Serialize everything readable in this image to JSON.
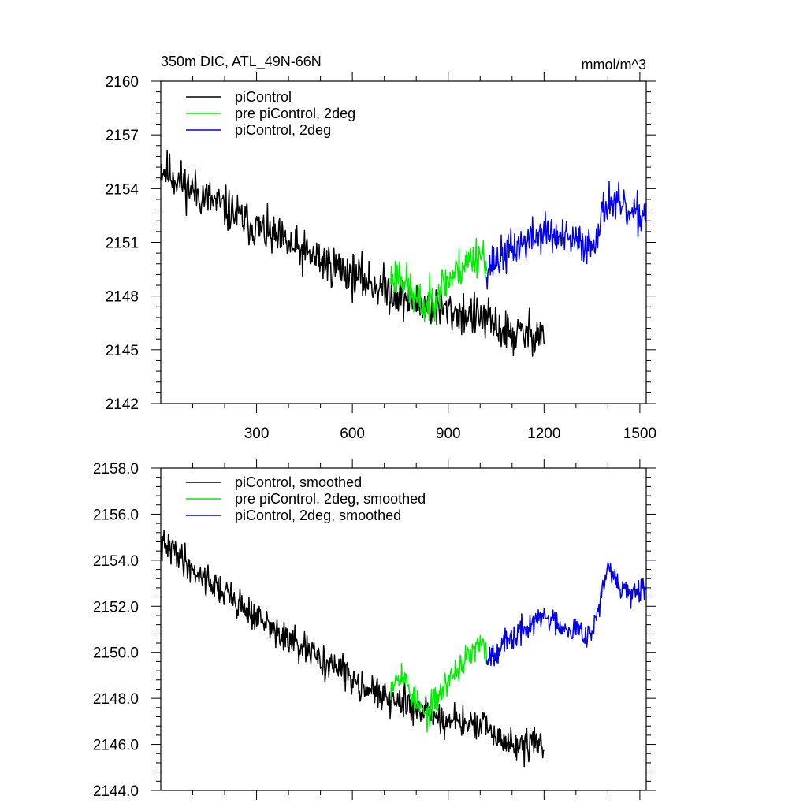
{
  "chart_data": [
    {
      "type": "line",
      "title": "350m DIC, ATL_49N-66N",
      "units_label": "mmol/m^3",
      "xlabel": "",
      "ylabel": "",
      "xlim": [
        0,
        1520
      ],
      "ylim": [
        2142,
        2160
      ],
      "x_ticks": [
        300,
        600,
        900,
        1200,
        1500
      ],
      "x_tick_labels": [
        "300",
        "600",
        "900",
        "1200",
        "1500"
      ],
      "y_ticks": [
        2142,
        2145,
        2148,
        2151,
        2154,
        2157,
        2160
      ],
      "y_tick_labels": [
        "2142",
        "2145",
        "2148",
        "2151",
        "2154",
        "2157",
        "2160"
      ],
      "legend": [
        "piControl",
        "pre piControl, 2deg",
        "piControl, 2deg"
      ],
      "legend_position": "top-left",
      "series": [
        {
          "name": "piControl",
          "color": "#000000",
          "x_range": [
            0,
            1200
          ],
          "step": 2,
          "seed": 11,
          "noise": 1.05,
          "anchors": [
            [
              0,
              2155.2
            ],
            [
              100,
              2153.9
            ],
            [
              200,
              2152.9
            ],
            [
              300,
              2151.8
            ],
            [
              400,
              2150.8
            ],
            [
              500,
              2150.0
            ],
            [
              600,
              2149.2
            ],
            [
              700,
              2148.4
            ],
            [
              800,
              2147.6
            ],
            [
              900,
              2147.2
            ],
            [
              1000,
              2146.8
            ],
            [
              1100,
              2145.8
            ],
            [
              1200,
              2146.0
            ]
          ]
        },
        {
          "name": "pre piControl, 2deg",
          "color": "#00ee00",
          "x_range": [
            720,
            1020
          ],
          "step": 2,
          "seed": 23,
          "noise": 1.0,
          "anchors": [
            [
              720,
              2149.0
            ],
            [
              750,
              2149.3
            ],
            [
              800,
              2147.7
            ],
            [
              830,
              2147.4
            ],
            [
              870,
              2148.4
            ],
            [
              900,
              2148.9
            ],
            [
              950,
              2149.8
            ],
            [
              1000,
              2150.4
            ],
            [
              1020,
              2150.2
            ]
          ]
        },
        {
          "name": "piControl, 2deg",
          "color": "#0000ee",
          "x_range": [
            1020,
            1520
          ],
          "step": 2,
          "seed": 37,
          "noise": 0.95,
          "anchors": [
            [
              1020,
              2149.6
            ],
            [
              1100,
              2150.6
            ],
            [
              1200,
              2151.6
            ],
            [
              1250,
              2151.2
            ],
            [
              1300,
              2151.0
            ],
            [
              1350,
              2150.8
            ],
            [
              1400,
              2153.4
            ],
            [
              1430,
              2153.0
            ],
            [
              1480,
              2152.4
            ],
            [
              1520,
              2152.7
            ]
          ]
        }
      ]
    },
    {
      "type": "line",
      "title": "",
      "xlabel": "",
      "ylabel": "",
      "xlim": [
        0,
        1520
      ],
      "ylim": [
        2144,
        2158
      ],
      "x_ticks": [
        300,
        600,
        900,
        1200,
        1500
      ],
      "y_ticks": [
        2144,
        2146,
        2148,
        2150,
        2152,
        2154,
        2156,
        2158
      ],
      "y_tick_labels": [
        "2144.0",
        "2146.0",
        "2148.0",
        "2150.0",
        "2152.0",
        "2154.0",
        "2156.0",
        "2158.0"
      ],
      "legend": [
        "piControl, smoothed",
        "pre piControl, 2deg, smoothed",
        "piControl, 2deg, smoothed"
      ],
      "legend_position": "top-left",
      "series": [
        {
          "name": "piControl, smoothed",
          "color": "#000000",
          "x_range": [
            0,
            1200
          ],
          "step": 2,
          "seed": 41,
          "noise": 0.6,
          "anchors": [
            [
              0,
              2154.6
            ],
            [
              50,
              2154.4
            ],
            [
              100,
              2153.6
            ],
            [
              200,
              2152.6
            ],
            [
              300,
              2151.5
            ],
            [
              400,
              2150.5
            ],
            [
              500,
              2149.7
            ],
            [
              600,
              2148.9
            ],
            [
              700,
              2148.0
            ],
            [
              800,
              2147.6
            ],
            [
              900,
              2147.0
            ],
            [
              1000,
              2146.8
            ],
            [
              1100,
              2145.9
            ],
            [
              1200,
              2146.1
            ]
          ]
        },
        {
          "name": "pre piControl, 2deg, smoothed",
          "color": "#00ee00",
          "x_range": [
            720,
            1020
          ],
          "step": 2,
          "seed": 53,
          "noise": 0.55,
          "anchors": [
            [
              720,
              2148.6
            ],
            [
              750,
              2149.2
            ],
            [
              800,
              2147.8
            ],
            [
              830,
              2147.2
            ],
            [
              870,
              2148.1
            ],
            [
              900,
              2148.8
            ],
            [
              950,
              2149.6
            ],
            [
              1000,
              2150.3
            ],
            [
              1020,
              2150.0
            ]
          ]
        },
        {
          "name": "piControl, 2deg, smoothed",
          "color": "#0000ee",
          "x_range": [
            1020,
            1520
          ],
          "step": 2,
          "seed": 67,
          "noise": 0.5,
          "anchors": [
            [
              1020,
              2149.8
            ],
            [
              1100,
              2150.6
            ],
            [
              1200,
              2151.6
            ],
            [
              1250,
              2151.2
            ],
            [
              1300,
              2151.0
            ],
            [
              1350,
              2150.8
            ],
            [
              1400,
              2153.6
            ],
            [
              1430,
              2153.0
            ],
            [
              1480,
              2152.4
            ],
            [
              1520,
              2152.7
            ]
          ]
        }
      ]
    }
  ]
}
